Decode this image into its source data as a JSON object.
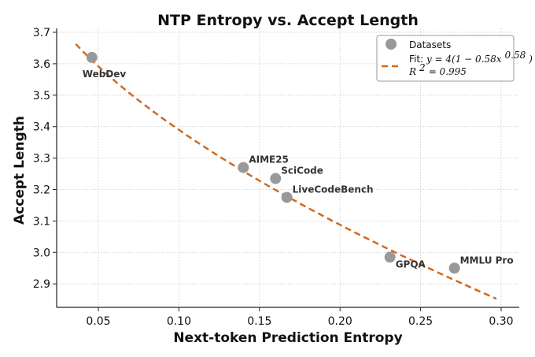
{
  "chart_data": {
    "type": "scatter",
    "title": "NTP Entropy vs. Accept Length",
    "xlabel": "Next-token Prediction Entropy",
    "ylabel": "Accept Length",
    "xlim": [
      0.026,
      0.31
    ],
    "ylim": [
      2.82,
      3.7
    ],
    "grid": true,
    "x_ticks": [
      0.05,
      0.1,
      0.15,
      0.2,
      0.25,
      0.3
    ],
    "x_tick_labels": [
      "0.05",
      "0.10",
      "0.15",
      "0.20",
      "0.25",
      "0.30"
    ],
    "y_ticks": [
      2.9,
      3.0,
      3.1,
      3.2,
      3.3,
      3.4,
      3.5,
      3.6,
      3.7
    ],
    "y_tick_labels": [
      "2.9",
      "3.0",
      "3.1",
      "3.2",
      "3.3",
      "3.4",
      "3.5",
      "3.6",
      "3.7"
    ],
    "legend_position": "top-right",
    "series": [
      {
        "name": "Datasets",
        "kind": "scatter",
        "color": "#999999",
        "points": [
          {
            "label": "WebDev",
            "x": 0.046,
            "y": 3.62
          },
          {
            "label": "AIME25",
            "x": 0.14,
            "y": 3.27
          },
          {
            "label": "SciCode",
            "x": 0.16,
            "y": 3.235
          },
          {
            "label": "LiveCodeBench",
            "x": 0.167,
            "y": 3.175
          },
          {
            "label": "GPQA",
            "x": 0.231,
            "y": 2.985
          },
          {
            "label": "MMLU Pro",
            "x": 0.271,
            "y": 2.95
          }
        ]
      },
      {
        "name": "Fit",
        "kind": "line",
        "style": "dashed",
        "color": "#d2691e",
        "equation": {
          "a": 4,
          "b": 0.58,
          "c": 0.58
        },
        "x_range": [
          0.036,
          0.297
        ]
      }
    ],
    "legend": {
      "datasets_label": "Datasets",
      "fit_prefix": "Fit: ",
      "fit_equation": "y = 4(1 − 0.58x",
      "fit_exponent": "0.58",
      "fit_close": ")",
      "r2_label": "R",
      "r2_sup": "2",
      "r2_value": " = 0.995"
    }
  }
}
